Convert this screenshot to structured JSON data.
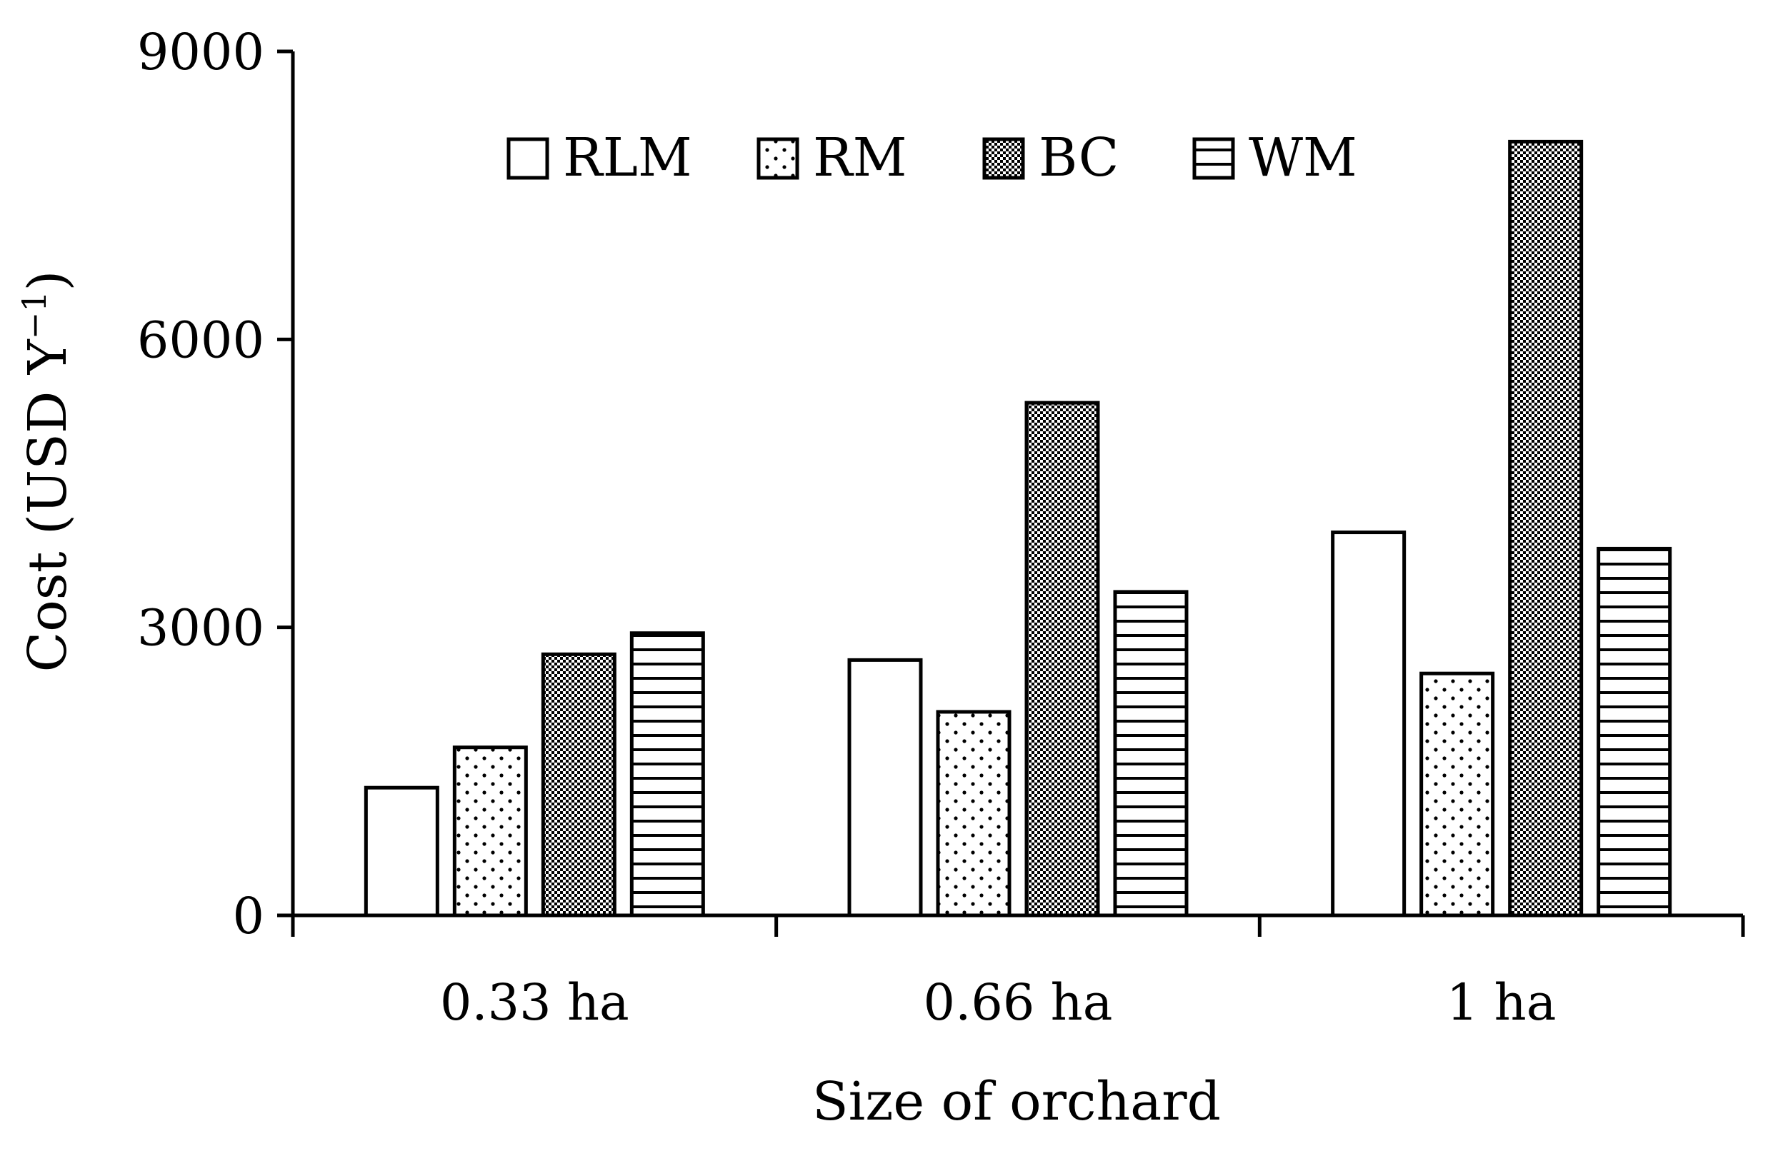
{
  "chart_data": {
    "type": "bar",
    "title": "",
    "xlabel": "Size of orchard",
    "ylabel": "Cost (USD Y",
    "ylabel_sup": "−1",
    "ylabel_close": ")",
    "categories": [
      "0.33 ha",
      "0.66 ha",
      "1 ha"
    ],
    "series": [
      {
        "name": "RLM",
        "values": [
          1330,
          2660,
          3990
        ],
        "pattern": "blank"
      },
      {
        "name": "RM",
        "values": [
          1750,
          2120,
          2520
        ],
        "pattern": "dots"
      },
      {
        "name": "BC",
        "values": [
          2720,
          5340,
          8060
        ],
        "pattern": "dense"
      },
      {
        "name": "WM",
        "values": [
          2940,
          3370,
          3820
        ],
        "pattern": "hlines"
      }
    ],
    "yticks": [
      "0",
      "3000",
      "6000",
      "9000"
    ],
    "ylim": [
      0,
      9000
    ],
    "grid": false,
    "legend_position": "top-center"
  }
}
